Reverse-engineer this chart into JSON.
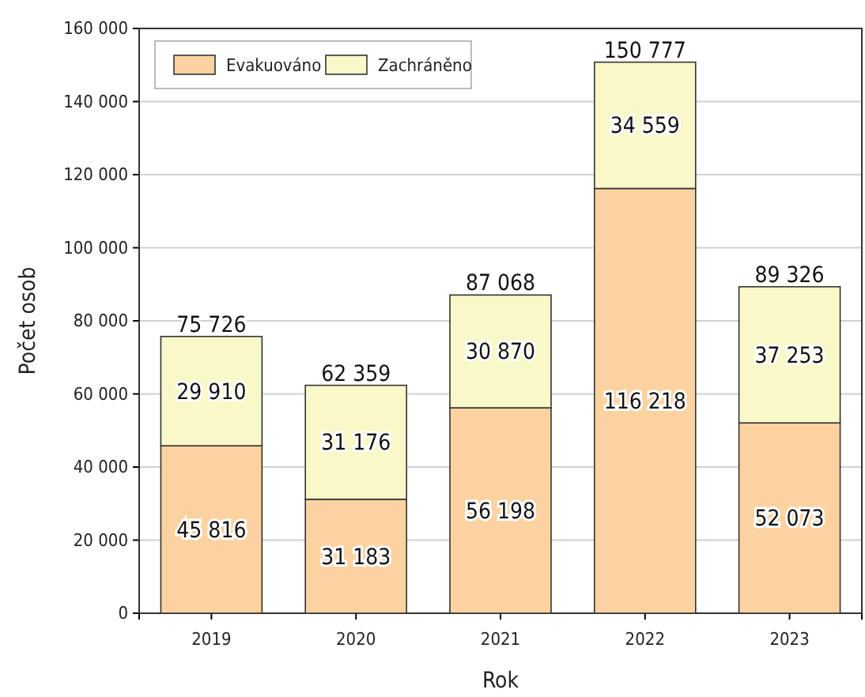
{
  "chart_data": {
    "type": "bar",
    "stacked": true,
    "xlabel": "Rok",
    "ylabel": "Počet osob",
    "categories": [
      "2019",
      "2020",
      "2021",
      "2022",
      "2023"
    ],
    "series": [
      {
        "name": "Evakuováno",
        "color": "#fcd3a0",
        "values": [
          45816,
          31183,
          56198,
          116218,
          52073
        ],
        "value_labels": [
          "45 816",
          "31 183",
          "56 198",
          "116 218",
          "52 073"
        ]
      },
      {
        "name": "Zachráněno",
        "color": "#f8f8c8",
        "values": [
          29910,
          31176,
          30870,
          34559,
          37253
        ],
        "value_labels": [
          "29 910",
          "31 176",
          "30 870",
          "34 559",
          "37 253"
        ]
      }
    ],
    "totals": [
      "75 726",
      "62 359",
      "87 068",
      "150 777",
      "89 326"
    ],
    "ylim": [
      0,
      160000
    ],
    "yticks": [
      0,
      {
        "value": 20000,
        "label": "20 000"
      },
      {
        "value": 40000,
        "label": "40 000"
      },
      {
        "value": 60000,
        "label": "60 000"
      },
      {
        "value": 80000,
        "label": "80 000"
      },
      {
        "value": 100000,
        "label": "100 000"
      },
      {
        "value": 120000,
        "label": "120 000"
      },
      {
        "value": 140000,
        "label": "140 000"
      },
      {
        "value": 160000,
        "label": "160 000"
      }
    ],
    "grid": "y",
    "legend": "top left"
  }
}
